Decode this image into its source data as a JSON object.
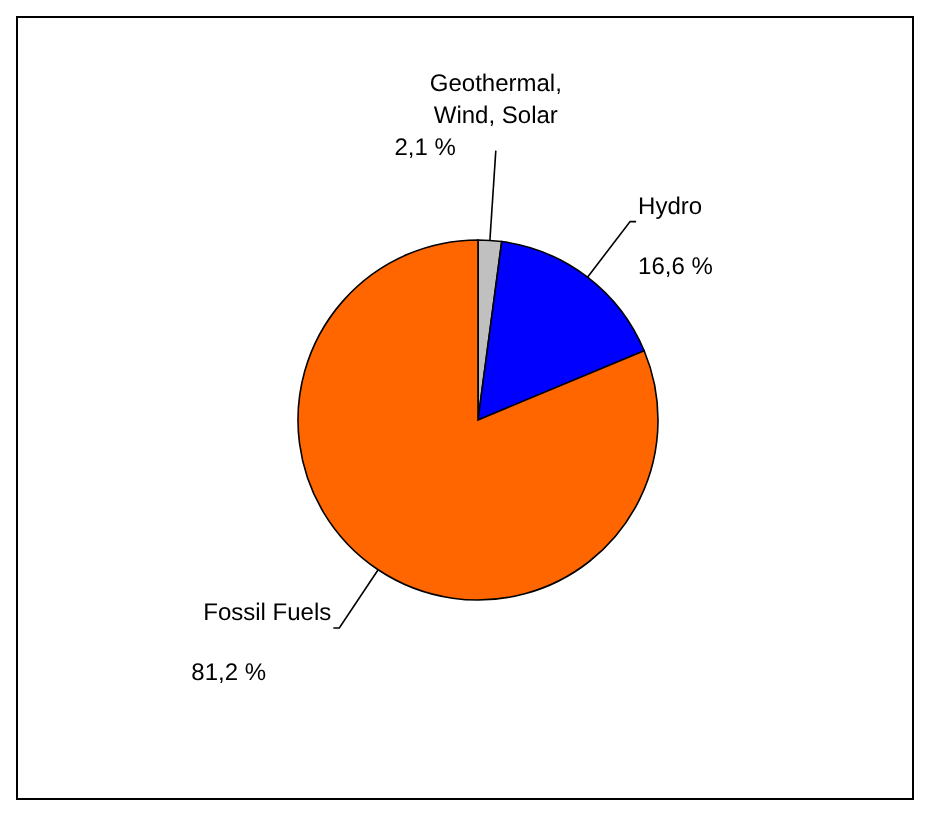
{
  "chart_data": {
    "type": "pie",
    "categories": [
      "Geothermal, Wind, Solar",
      "Hydro",
      "Fossil Fuels"
    ],
    "values": [
      2.1,
      16.6,
      81.2
    ],
    "colors": [
      "#c0c0c0",
      "#0000ff",
      "#ff6600"
    ],
    "value_labels": [
      "2,1 %",
      "16,6 %",
      "81,2 %"
    ]
  }
}
